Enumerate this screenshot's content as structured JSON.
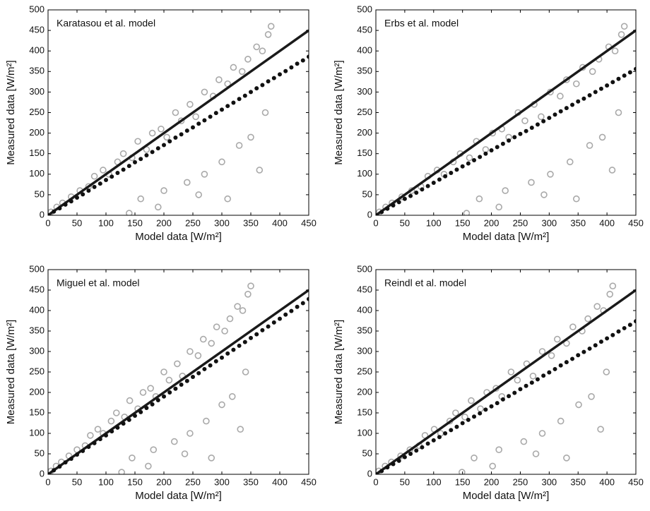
{
  "chart_data": [
    {
      "type": "scatter",
      "annotation": "Karatasou et al. model",
      "xlabel": "Model data [W/m²]",
      "ylabel": "Measured data [W/m²]",
      "xlim": [
        0,
        450
      ],
      "ylim": [
        0,
        500
      ],
      "xticks": [
        0,
        50,
        100,
        150,
        200,
        250,
        300,
        350,
        400,
        450
      ],
      "yticks": [
        0,
        50,
        100,
        150,
        200,
        250,
        300,
        350,
        400,
        450,
        500
      ],
      "series": [
        {
          "marker": "open-circle",
          "color": "#a9a9a9",
          "x": [
            5,
            15,
            25,
            40,
            55,
            70,
            80,
            95,
            105,
            120,
            130,
            145,
            155,
            170,
            180,
            195,
            205,
            220,
            230,
            245,
            255,
            270,
            285,
            295,
            310,
            320,
            335,
            345,
            360,
            370,
            380,
            385,
            160,
            200,
            240,
            270,
            300,
            330,
            350,
            365,
            140,
            190,
            260,
            310,
            375
          ],
          "values": [
            8,
            20,
            30,
            45,
            60,
            70,
            95,
            110,
            100,
            130,
            150,
            140,
            180,
            160,
            200,
            210,
            190,
            250,
            230,
            270,
            240,
            300,
            290,
            330,
            320,
            360,
            350,
            380,
            410,
            400,
            440,
            460,
            40,
            60,
            80,
            100,
            130,
            170,
            190,
            110,
            5,
            20,
            50,
            40,
            250
          ]
        },
        {
          "marker": "line",
          "color": "#1a1a1a",
          "x": [
            0,
            450
          ],
          "values": [
            0,
            450
          ]
        },
        {
          "marker": "filled-circle",
          "color": "#111111",
          "x": [
            0,
            10,
            20,
            30,
            40,
            50,
            60,
            70,
            80,
            90,
            100,
            110,
            120,
            130,
            140,
            150,
            160,
            170,
            180,
            190,
            200,
            210,
            220,
            230,
            240,
            250,
            260,
            270,
            280,
            290,
            300,
            310,
            320,
            330,
            340,
            350,
            360,
            370,
            380,
            390,
            400,
            410,
            420,
            430,
            440,
            450
          ],
          "values": [
            0,
            9,
            17,
            26,
            34,
            43,
            51,
            60,
            69,
            77,
            86,
            94,
            103,
            111,
            120,
            129,
            137,
            146,
            154,
            163,
            171,
            180,
            189,
            197,
            206,
            214,
            223,
            231,
            240,
            249,
            257,
            266,
            274,
            283,
            291,
            300,
            309,
            317,
            326,
            334,
            343,
            351,
            360,
            369,
            377,
            386
          ]
        }
      ]
    },
    {
      "type": "scatter",
      "annotation": "Erbs et al. model",
      "xlabel": "Model data [W/m²]",
      "ylabel": "Measured data [W/m²]",
      "xlim": [
        0,
        450
      ],
      "ylim": [
        0,
        500
      ],
      "xticks": [
        0,
        50,
        100,
        150,
        200,
        250,
        300,
        350,
        400,
        450
      ],
      "yticks": [
        0,
        50,
        100,
        150,
        200,
        250,
        300,
        350,
        400,
        450,
        500
      ],
      "series": [
        {
          "marker": "open-circle",
          "color": "#a9a9a9",
          "x": [
            6,
            17,
            28,
            45,
            62,
            78,
            90,
            106,
            118,
            134,
            146,
            162,
            174,
            190,
            202,
            218,
            230,
            246,
            258,
            274,
            286,
            302,
            319,
            330,
            347,
            358,
            375,
            386,
            403,
            414,
            425,
            430,
            179,
            224,
            269,
            302,
            336,
            370,
            392,
            409,
            157,
            213,
            291,
            347,
            420
          ],
          "values": [
            8,
            20,
            30,
            45,
            60,
            70,
            95,
            110,
            100,
            130,
            150,
            140,
            180,
            160,
            200,
            210,
            190,
            250,
            230,
            270,
            240,
            300,
            290,
            330,
            320,
            360,
            350,
            380,
            410,
            400,
            440,
            460,
            40,
            60,
            80,
            100,
            130,
            170,
            190,
            110,
            5,
            20,
            50,
            40,
            250
          ]
        },
        {
          "marker": "line",
          "color": "#1a1a1a",
          "x": [
            0,
            450
          ],
          "values": [
            0,
            450
          ]
        },
        {
          "marker": "filled-circle",
          "color": "#111111",
          "x": [
            0,
            10,
            20,
            30,
            40,
            50,
            60,
            70,
            80,
            90,
            100,
            110,
            120,
            130,
            140,
            150,
            160,
            170,
            180,
            190,
            200,
            210,
            220,
            230,
            240,
            250,
            260,
            270,
            280,
            290,
            300,
            310,
            320,
            330,
            340,
            350,
            360,
            370,
            380,
            390,
            400,
            410,
            420,
            430,
            440,
            450
          ],
          "values": [
            0,
            8,
            16,
            24,
            32,
            40,
            47,
            55,
            63,
            71,
            79,
            87,
            95,
            103,
            111,
            119,
            126,
            134,
            142,
            150,
            158,
            166,
            174,
            182,
            190,
            198,
            205,
            213,
            221,
            229,
            237,
            245,
            253,
            261,
            269,
            277,
            284,
            292,
            300,
            308,
            316,
            324,
            332,
            340,
            348,
            356
          ]
        }
      ]
    },
    {
      "type": "scatter",
      "annotation": "Miguel et al. model",
      "xlabel": "Model data [W/m²]",
      "ylabel": "Measured data [W/m²]",
      "xlim": [
        0,
        450
      ],
      "ylim": [
        0,
        500
      ],
      "xticks": [
        0,
        50,
        100,
        150,
        200,
        250,
        300,
        350,
        400,
        450
      ],
      "yticks": [
        0,
        50,
        100,
        150,
        200,
        250,
        300,
        350,
        400,
        450,
        500
      ],
      "series": [
        {
          "marker": "open-circle",
          "color": "#a9a9a9",
          "x": [
            5,
            14,
            23,
            36,
            50,
            64,
            73,
            86,
            95,
            109,
            118,
            132,
            141,
            155,
            164,
            177,
            186,
            200,
            209,
            223,
            232,
            245,
            259,
            268,
            282,
            291,
            305,
            314,
            327,
            336,
            345,
            350,
            145,
            182,
            218,
            245,
            273,
            300,
            318,
            332,
            127,
            173,
            236,
            282,
            341
          ],
          "values": [
            8,
            20,
            30,
            45,
            60,
            70,
            95,
            110,
            100,
            130,
            150,
            140,
            180,
            160,
            200,
            210,
            190,
            250,
            230,
            270,
            240,
            300,
            290,
            330,
            320,
            360,
            350,
            380,
            410,
            400,
            440,
            460,
            40,
            60,
            80,
            100,
            130,
            170,
            190,
            110,
            5,
            20,
            50,
            40,
            250
          ]
        },
        {
          "marker": "line",
          "color": "#1a1a1a",
          "x": [
            0,
            450
          ],
          "values": [
            0,
            450
          ]
        },
        {
          "marker": "filled-circle",
          "color": "#111111",
          "x": [
            0,
            10,
            20,
            30,
            40,
            50,
            60,
            70,
            80,
            90,
            100,
            110,
            120,
            130,
            140,
            150,
            160,
            170,
            180,
            190,
            200,
            210,
            220,
            230,
            240,
            250,
            260,
            270,
            280,
            290,
            300,
            310,
            320,
            330,
            340,
            350,
            360,
            370,
            380,
            390,
            400,
            410,
            420,
            430,
            440,
            450
          ],
          "values": [
            0,
            10,
            19,
            29,
            38,
            48,
            57,
            67,
            76,
            86,
            95,
            105,
            114,
            124,
            133,
            143,
            152,
            162,
            171,
            181,
            190,
            200,
            209,
            219,
            228,
            238,
            247,
            257,
            266,
            276,
            285,
            295,
            304,
            314,
            323,
            333,
            342,
            352,
            361,
            371,
            380,
            390,
            399,
            409,
            418,
            428
          ]
        }
      ]
    },
    {
      "type": "scatter",
      "annotation": "Reindl et al. model",
      "xlabel": "Model data [W/m²]",
      "ylabel": "Measured data [W/m²]",
      "xlim": [
        0,
        450
      ],
      "ylim": [
        0,
        500
      ],
      "xticks": [
        0,
        50,
        100,
        150,
        200,
        250,
        300,
        350,
        400,
        450
      ],
      "yticks": [
        0,
        50,
        100,
        150,
        200,
        250,
        300,
        350,
        400,
        450,
        500
      ],
      "series": [
        {
          "marker": "open-circle",
          "color": "#a9a9a9",
          "x": [
            5,
            16,
            27,
            43,
            59,
            75,
            85,
            101,
            112,
            128,
            138,
            154,
            165,
            181,
            192,
            208,
            218,
            234,
            245,
            261,
            272,
            288,
            304,
            314,
            330,
            341,
            357,
            367,
            383,
            394,
            405,
            410,
            170,
            213,
            256,
            288,
            320,
            351,
            373,
            389,
            149,
            202,
            277,
            330,
            399
          ],
          "values": [
            8,
            20,
            30,
            45,
            60,
            70,
            95,
            110,
            100,
            130,
            150,
            140,
            180,
            160,
            200,
            210,
            190,
            250,
            230,
            270,
            240,
            300,
            290,
            330,
            320,
            360,
            350,
            380,
            410,
            400,
            440,
            460,
            40,
            60,
            80,
            100,
            130,
            170,
            190,
            110,
            5,
            20,
            50,
            40,
            250
          ]
        },
        {
          "marker": "line",
          "color": "#1a1a1a",
          "x": [
            0,
            450
          ],
          "values": [
            0,
            450
          ]
        },
        {
          "marker": "filled-circle",
          "color": "#111111",
          "x": [
            0,
            10,
            20,
            30,
            40,
            50,
            60,
            70,
            80,
            90,
            100,
            110,
            120,
            130,
            140,
            150,
            160,
            170,
            180,
            190,
            200,
            210,
            220,
            230,
            240,
            250,
            260,
            270,
            280,
            290,
            300,
            310,
            320,
            330,
            340,
            350,
            360,
            370,
            380,
            390,
            400,
            410,
            420,
            430,
            440,
            450
          ],
          "values": [
            0,
            8,
            17,
            25,
            33,
            42,
            50,
            58,
            66,
            75,
            83,
            91,
            100,
            108,
            116,
            125,
            133,
            141,
            149,
            158,
            166,
            174,
            183,
            191,
            199,
            208,
            216,
            224,
            232,
            241,
            249,
            257,
            266,
            274,
            282,
            291,
            299,
            307,
            315,
            324,
            332,
            340,
            349,
            357,
            365,
            374
          ]
        }
      ]
    }
  ]
}
